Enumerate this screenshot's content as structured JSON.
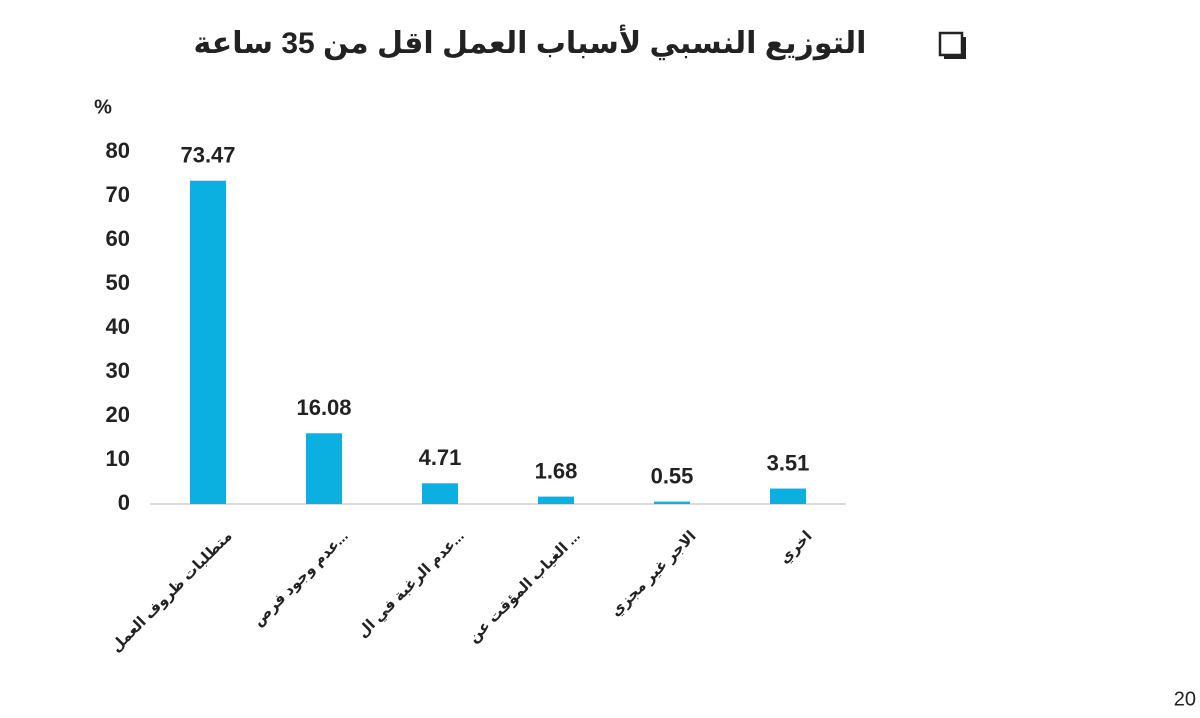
{
  "chart_data": {
    "type": "bar",
    "title": "التوزيع النسبي لأسباب العمل اقل من 35 ساعة",
    "y_label": "%",
    "categories": [
      "متطلبات ظروف العمل",
      "عدم وجود فرص...",
      "عدم الرغبة في ال...",
      "الغياب المؤقت عن ...",
      "الاجر غير مجزي",
      "اخري"
    ],
    "values": [
      73.47,
      16.08,
      4.71,
      1.68,
      0.55,
      3.51
    ],
    "color": "#0cb0e0",
    "ylim": [
      0,
      80
    ],
    "yticks": [
      0,
      10,
      20,
      30,
      40,
      50,
      60,
      70,
      80
    ],
    "grid": false
  },
  "slide": {
    "page_number": "20"
  }
}
